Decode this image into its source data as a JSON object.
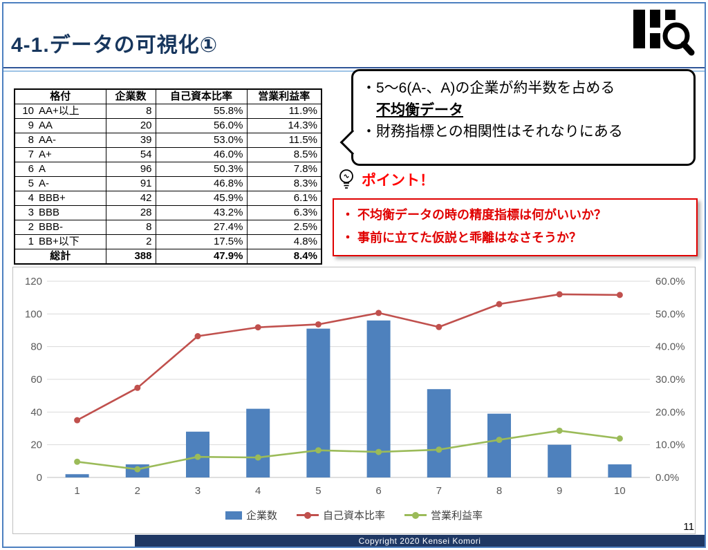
{
  "slide": {
    "title": "4-1.データの可視化①",
    "page_number": "11",
    "footer": "Copyright 2020 Kensei Komori"
  },
  "table": {
    "headers": [
      "格付",
      "企業数",
      "自己資本比率",
      "営業利益率"
    ],
    "rows": [
      {
        "rank": "10",
        "rating": "AA+以上",
        "count": "8",
        "equity": "55.8%",
        "margin": "11.9%"
      },
      {
        "rank": "9",
        "rating": "AA",
        "count": "20",
        "equity": "56.0%",
        "margin": "14.3%"
      },
      {
        "rank": "8",
        "rating": "AA-",
        "count": "39",
        "equity": "53.0%",
        "margin": "11.5%"
      },
      {
        "rank": "7",
        "rating": "A+",
        "count": "54",
        "equity": "46.0%",
        "margin": "8.5%"
      },
      {
        "rank": "6",
        "rating": "A",
        "count": "96",
        "equity": "50.3%",
        "margin": "7.8%"
      },
      {
        "rank": "5",
        "rating": "A-",
        "count": "91",
        "equity": "46.8%",
        "margin": "8.3%"
      },
      {
        "rank": "4",
        "rating": "BBB+",
        "count": "42",
        "equity": "45.9%",
        "margin": "6.1%"
      },
      {
        "rank": "3",
        "rating": "BBB",
        "count": "28",
        "equity": "43.2%",
        "margin": "6.3%"
      },
      {
        "rank": "2",
        "rating": "BBB-",
        "count": "8",
        "equity": "27.4%",
        "margin": "2.5%"
      },
      {
        "rank": "1",
        "rating": "BB+以下",
        "count": "2",
        "equity": "17.5%",
        "margin": "4.8%"
      }
    ],
    "total": {
      "label": "総計",
      "count": "388",
      "equity": "47.9%",
      "margin": "8.4%"
    }
  },
  "callout": {
    "line1": "・5～6(A-、A)の企業が約半数を占める",
    "emphasis": "不均衡データ",
    "line2": "・財務指標との相関性はそれなりにある"
  },
  "point": {
    "label": "ポイント！",
    "items": [
      "・ 不均衡データの時の精度指標は何がいいか？",
      "・ 事前に立てた仮説と乖離はなさそうか？"
    ]
  },
  "chart_data": {
    "type": "combo",
    "categories": [
      "1",
      "2",
      "3",
      "4",
      "5",
      "6",
      "7",
      "8",
      "9",
      "10"
    ],
    "series": [
      {
        "name": "企業数",
        "type": "bar",
        "axis": "left",
        "color": "#4E81BD",
        "values": [
          2,
          8,
          28,
          42,
          91,
          96,
          54,
          39,
          20,
          8
        ]
      },
      {
        "name": "自己資本比率",
        "type": "line",
        "axis": "right",
        "color": "#C0504D",
        "values": [
          17.5,
          27.4,
          43.2,
          45.9,
          46.8,
          50.3,
          46.0,
          53.0,
          56.0,
          55.8
        ]
      },
      {
        "name": "営業利益率",
        "type": "line",
        "axis": "right",
        "color": "#9BBB59",
        "values": [
          4.8,
          2.5,
          6.3,
          6.1,
          8.3,
          7.8,
          8.5,
          11.5,
          14.3,
          11.9
        ]
      }
    ],
    "left_axis": {
      "min": 0,
      "max": 120,
      "step": 20,
      "labels": [
        "0",
        "20",
        "40",
        "60",
        "80",
        "100",
        "120"
      ]
    },
    "right_axis": {
      "min": 0,
      "max": 60,
      "step": 10,
      "labels": [
        "0.0%",
        "10.0%",
        "20.0%",
        "30.0%",
        "40.0%",
        "50.0%",
        "60.0%"
      ]
    },
    "grid": true,
    "legend_position": "bottom"
  }
}
